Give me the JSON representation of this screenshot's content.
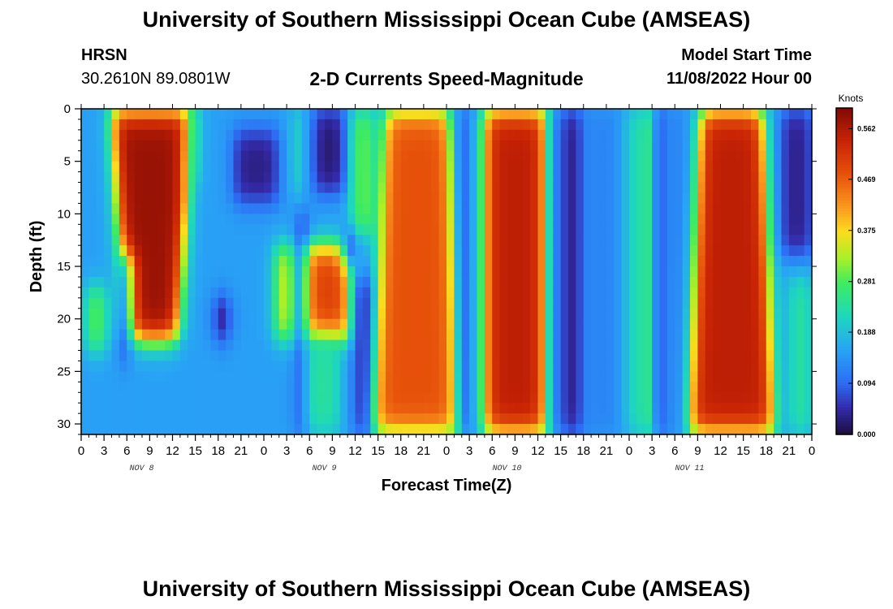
{
  "header": {
    "title": "University of Southern Mississippi Ocean Cube (AMSEAS)",
    "station": "HRSN",
    "location": "30.2610N  89.0801W",
    "subtitle": "2-D Currents Speed-Magnitude",
    "model_start_label": "Model Start Time",
    "model_start_value": "11/08/2022 Hour 00"
  },
  "footer": {
    "title": "University of Southern Mississippi Ocean Cube (AMSEAS)"
  },
  "chart_data": {
    "type": "heatmap",
    "title": "2-D Currents Speed-Magnitude",
    "xlabel": "Forecast Time(Z)",
    "ylabel": "Depth (ft)",
    "x_range_hours": [
      0,
      96
    ],
    "x_tick_labels": [
      "0",
      "3",
      "6",
      "9",
      "12",
      "15",
      "18",
      "21",
      "0",
      "3",
      "6",
      "9",
      "12",
      "15",
      "18",
      "21",
      "0",
      "3",
      "6",
      "9",
      "12",
      "15",
      "18",
      "21",
      "0",
      "3",
      "6",
      "9",
      "12",
      "15",
      "18",
      "21",
      "0"
    ],
    "day_labels": [
      "NOV 8",
      "NOV 9",
      "NOV 10",
      "NOV 11"
    ],
    "y_range_ft": [
      0,
      31
    ],
    "y_ticks": [
      0,
      5,
      10,
      15,
      20,
      25,
      30
    ],
    "colorbar": {
      "unit": "Knots",
      "range": [
        0.0,
        0.6
      ],
      "ticks": [
        "0.562",
        "0.469",
        "0.375",
        "0.281",
        "0.188",
        "0.094",
        "0.000"
      ]
    },
    "blobs": [
      {
        "t0": 4.0,
        "t1": 14.5,
        "d0": 0,
        "d1": 22,
        "value": 0.58,
        "taper": 1
      },
      {
        "t0": 0.6,
        "t1": 3.4,
        "d0": 17,
        "d1": 23,
        "value": 0.3,
        "taper": 0
      },
      {
        "t0": 5.3,
        "t1": 6.3,
        "d0": 14,
        "d1": 24,
        "value": 0.03,
        "taper": 0
      },
      {
        "t0": 14.2,
        "t1": 15.5,
        "d0": 0,
        "d1": 7,
        "value": 0.25,
        "taper": 0
      },
      {
        "t0": 16.8,
        "t1": 20.5,
        "d0": 0,
        "d1": 9,
        "value": 0.15,
        "taper": 0
      },
      {
        "t0": 17.5,
        "t1": 19.5,
        "d0": 18,
        "d1": 22,
        "value": 0.02,
        "taper": 0
      },
      {
        "t0": 20.0,
        "t1": 26.0,
        "d0": 2,
        "d1": 9,
        "value": 0.03,
        "taper": 0
      },
      {
        "t0": 25.5,
        "t1": 28.5,
        "d0": 13,
        "d1": 22,
        "value": 0.36,
        "taper": 0
      },
      {
        "t0": 28.5,
        "t1": 29.6,
        "d0": 10,
        "d1": 31,
        "value": 0.02,
        "taper": 0
      },
      {
        "t0": 29.5,
        "t1": 35.5,
        "d0": 13,
        "d1": 22,
        "value": 0.5,
        "taper": 0
      },
      {
        "t0": 29.5,
        "t1": 34.0,
        "d0": 22,
        "d1": 31,
        "value": 0.24,
        "taper": 0
      },
      {
        "t0": 27.8,
        "t1": 29.2,
        "d0": 0,
        "d1": 8,
        "value": 0.22,
        "taper": 0
      },
      {
        "t0": 30.5,
        "t1": 35.0,
        "d0": 0,
        "d1": 8,
        "value": 0.02,
        "taper": 0
      },
      {
        "t0": 34.8,
        "t1": 36.0,
        "d0": 11,
        "d1": 15,
        "value": 0.02,
        "taper": 0
      },
      {
        "t0": 36.0,
        "t1": 38.5,
        "d0": 16,
        "d1": 31,
        "value": 0.03,
        "taper": 0
      },
      {
        "t0": 35.5,
        "t1": 38.5,
        "d0": 0,
        "d1": 12,
        "value": 0.3,
        "taper": 0
      },
      {
        "t0": 38.5,
        "t1": 50.0,
        "d0": 0,
        "d1": 31,
        "value": 0.48,
        "taper": -1
      },
      {
        "t0": 49.5,
        "t1": 52.0,
        "d0": 0,
        "d1": 31,
        "value": 0.07,
        "taper": 0
      },
      {
        "t0": 51.5,
        "t1": 53.0,
        "d0": 0,
        "d1": 31,
        "value": 0.18,
        "taper": 0
      },
      {
        "t0": 53.0,
        "t1": 61.5,
        "d0": 0,
        "d1": 31,
        "value": 0.55,
        "taper": 0
      },
      {
        "t0": 61.5,
        "t1": 63.0,
        "d0": 0,
        "d1": 31,
        "value": 0.12,
        "taper": 0
      },
      {
        "t0": 63.0,
        "t1": 66.0,
        "d0": 0,
        "d1": 31,
        "value": 0.03,
        "taper": 0
      },
      {
        "t0": 66.5,
        "t1": 71.0,
        "d0": 0,
        "d1": 31,
        "value": 0.12,
        "taper": 0
      },
      {
        "t0": 71.5,
        "t1": 73.5,
        "d0": 0,
        "d1": 31,
        "value": 0.21,
        "taper": 0
      },
      {
        "t0": 73.5,
        "t1": 75.5,
        "d0": 0,
        "d1": 31,
        "value": 0.3,
        "taper": 0
      },
      {
        "t0": 75.5,
        "t1": 76.8,
        "d0": 0,
        "d1": 31,
        "value": 0.03,
        "taper": 0
      },
      {
        "t0": 76.8,
        "t1": 80.0,
        "d0": 0,
        "d1": 31,
        "value": 0.12,
        "taper": 0
      },
      {
        "t0": 80.0,
        "t1": 91.0,
        "d0": 0,
        "d1": 31,
        "value": 0.55,
        "taper": -1
      },
      {
        "t0": 92.0,
        "t1": 96.0,
        "d0": 0,
        "d1": 14,
        "value": 0.03,
        "taper": 0
      },
      {
        "t0": 93.0,
        "t1": 96.0,
        "d0": 16,
        "d1": 31,
        "value": 0.24,
        "taper": 0
      }
    ]
  }
}
